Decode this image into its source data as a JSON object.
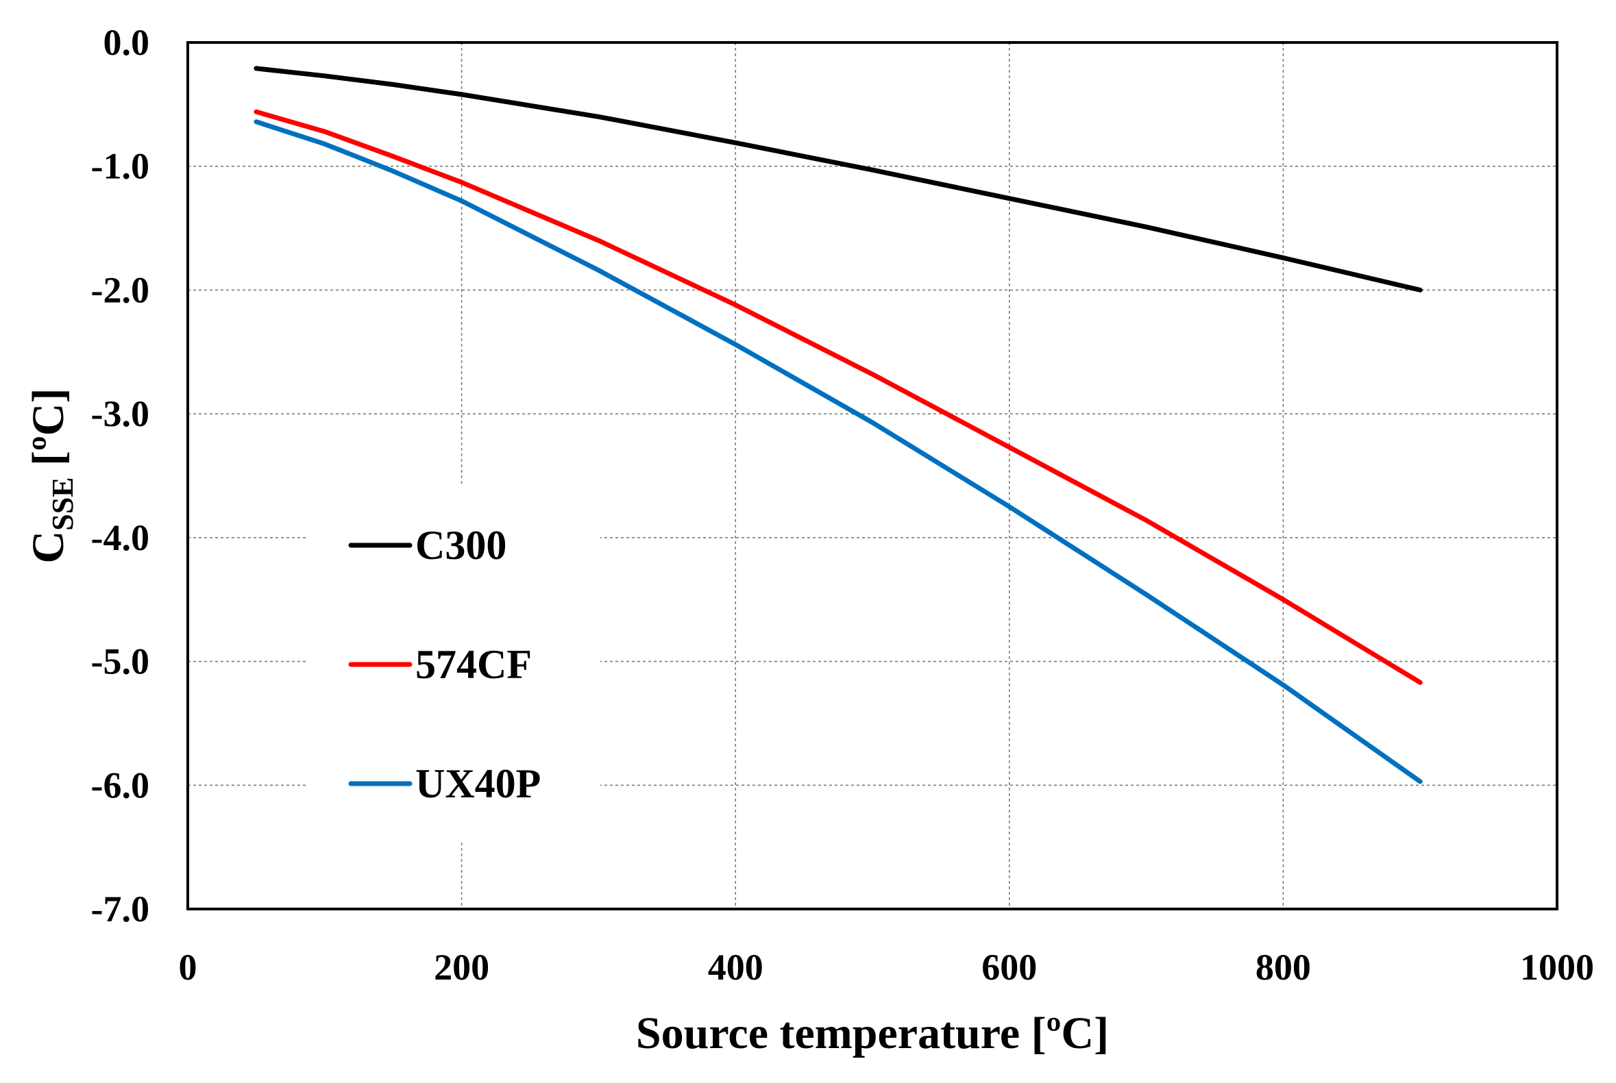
{
  "chart_data": {
    "type": "line",
    "xlabel": "Source temperature [ºC]",
    "ylabel": {
      "main": "C",
      "subscript": "SSE",
      "unit": " [ºC]"
    },
    "xlim": [
      0,
      1000
    ],
    "ylim": [
      -7.0,
      0.0
    ],
    "x_ticks": [
      0,
      200,
      400,
      600,
      800,
      1000
    ],
    "x_tick_labels": [
      "0",
      "200",
      "400",
      "600",
      "800",
      "1000"
    ],
    "y_ticks": [
      0,
      -1,
      -2,
      -3,
      -4,
      -5,
      -6,
      -7
    ],
    "y_tick_labels": [
      "0.0",
      "-1.0",
      "-2.0",
      "-3.0",
      "-4.0",
      "-5.0",
      "-6.0",
      "-7.0"
    ],
    "grid": true,
    "legend_position": "center-left",
    "series": [
      {
        "name": "C300",
        "color": "#000000",
        "x": [
          50,
          100,
          150,
          200,
          300,
          400,
          500,
          600,
          700,
          800,
          900
        ],
        "y": [
          -0.21,
          -0.27,
          -0.34,
          -0.42,
          -0.6,
          -0.81,
          -1.03,
          -1.26,
          -1.49,
          -1.74,
          -2.0
        ]
      },
      {
        "name": "574CF",
        "color": "#ff0000",
        "x": [
          50,
          100,
          150,
          200,
          300,
          400,
          500,
          600,
          700,
          800,
          900
        ],
        "y": [
          -0.56,
          -0.72,
          -0.92,
          -1.13,
          -1.6,
          -2.12,
          -2.68,
          -3.27,
          -3.86,
          -4.5,
          -5.17
        ]
      },
      {
        "name": "UX40P",
        "color": "#0070c0",
        "x": [
          50,
          100,
          150,
          200,
          300,
          400,
          500,
          600,
          700,
          800,
          900
        ],
        "y": [
          -0.64,
          -0.82,
          -1.04,
          -1.28,
          -1.84,
          -2.44,
          -3.07,
          -3.75,
          -4.46,
          -5.19,
          -5.97
        ]
      }
    ]
  }
}
